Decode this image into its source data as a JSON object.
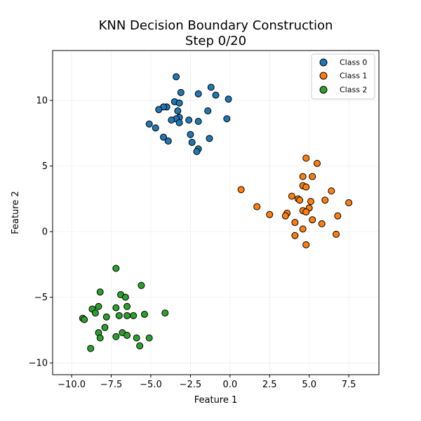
{
  "chart_data": {
    "type": "scatter",
    "title_line1": "KNN Decision Boundary Construction",
    "title_line2": "Step 0/20",
    "xlabel": "Feature 1",
    "ylabel": "Feature 2",
    "xlim": [
      -11.2,
      9.4
    ],
    "ylim": [
      -10.9,
      13.8
    ],
    "xticks": [
      -10.0,
      -7.5,
      -5.0,
      -2.5,
      0.0,
      2.5,
      5.0,
      7.5
    ],
    "xtick_labels": [
      "−10.0",
      "−7.5",
      "−5.0",
      "−2.5",
      "0.0",
      "2.5",
      "5.0",
      "7.5"
    ],
    "yticks": [
      -10,
      -5,
      0,
      5,
      10
    ],
    "ytick_labels": [
      "−10",
      "−5",
      "0",
      "5",
      "10"
    ],
    "grid": true,
    "legend_position": "top-right",
    "series": [
      {
        "name": "Class 0",
        "color": "#1f77b4",
        "points": [
          [
            -3.4,
            11.8
          ],
          [
            -1.2,
            11.0
          ],
          [
            -3.1,
            10.6
          ],
          [
            -2.0,
            10.5
          ],
          [
            -0.9,
            10.4
          ],
          [
            -0.1,
            10.1
          ],
          [
            -3.5,
            9.9
          ],
          [
            -3.2,
            9.8
          ],
          [
            -4.0,
            9.5
          ],
          [
            -4.2,
            9.5
          ],
          [
            -4.5,
            9.3
          ],
          [
            -1.4,
            9.2
          ],
          [
            -3.3,
            9.2
          ],
          [
            -3.2,
            8.7
          ],
          [
            -3.4,
            8.6
          ],
          [
            -3.7,
            8.5
          ],
          [
            -2.6,
            8.5
          ],
          [
            -2.0,
            8.4
          ],
          [
            -0.2,
            8.6
          ],
          [
            -3.2,
            8.3
          ],
          [
            -5.1,
            8.2
          ],
          [
            -4.7,
            7.9
          ],
          [
            -2.5,
            7.4
          ],
          [
            -4.2,
            7.2
          ],
          [
            -1.3,
            7.1
          ],
          [
            -3.9,
            6.9
          ],
          [
            -2.4,
            6.8
          ],
          [
            -2.0,
            6.3
          ],
          [
            -2.1,
            6.1
          ]
        ]
      },
      {
        "name": "Class 1",
        "color": "#ff7f0e",
        "points": [
          [
            4.8,
            5.6
          ],
          [
            5.5,
            5.2
          ],
          [
            4.6,
            4.2
          ],
          [
            5.2,
            4.2
          ],
          [
            0.7,
            3.2
          ],
          [
            4.6,
            3.5
          ],
          [
            4.8,
            3.4
          ],
          [
            6.4,
            3.1
          ],
          [
            3.9,
            2.7
          ],
          [
            4.3,
            2.5
          ],
          [
            4.4,
            2.4
          ],
          [
            6.0,
            2.4
          ],
          [
            5.1,
            2.3
          ],
          [
            7.5,
            2.2
          ],
          [
            1.7,
            1.9
          ],
          [
            5.0,
            1.8
          ],
          [
            4.6,
            1.6
          ],
          [
            4.8,
            1.5
          ],
          [
            3.6,
            1.4
          ],
          [
            2.5,
            1.3
          ],
          [
            3.5,
            1.2
          ],
          [
            6.8,
            1.2
          ],
          [
            5.2,
            0.9
          ],
          [
            4.1,
            0.7
          ],
          [
            5.8,
            0.6
          ],
          [
            4.6,
            0.2
          ],
          [
            4.1,
            -0.3
          ],
          [
            6.7,
            -0.2
          ],
          [
            4.8,
            -1.0
          ]
        ]
      },
      {
        "name": "Class 2",
        "color": "#2ca02c",
        "points": [
          [
            -7.2,
            -2.8
          ],
          [
            -5.6,
            -4.1
          ],
          [
            -8.2,
            -4.6
          ],
          [
            -6.9,
            -4.8
          ],
          [
            -6.6,
            -5.0
          ],
          [
            -6.5,
            -5.7
          ],
          [
            -8.3,
            -5.7
          ],
          [
            -7.2,
            -5.8
          ],
          [
            -8.7,
            -5.9
          ],
          [
            -4.1,
            -6.2
          ],
          [
            -8.5,
            -6.2
          ],
          [
            -5.4,
            -6.3
          ],
          [
            -6.5,
            -6.4
          ],
          [
            -7.0,
            -6.4
          ],
          [
            -6.1,
            -6.4
          ],
          [
            -7.8,
            -6.5
          ],
          [
            -9.3,
            -6.6
          ],
          [
            -9.2,
            -6.7
          ],
          [
            -7.9,
            -7.3
          ],
          [
            -6.8,
            -7.7
          ],
          [
            -8.3,
            -7.7
          ],
          [
            -6.5,
            -7.9
          ],
          [
            -7.2,
            -8.0
          ],
          [
            -8.2,
            -8.1
          ],
          [
            -5.9,
            -8.1
          ],
          [
            -5.1,
            -8.1
          ],
          [
            -5.7,
            -8.7
          ],
          [
            -8.8,
            -8.9
          ]
        ]
      }
    ]
  }
}
